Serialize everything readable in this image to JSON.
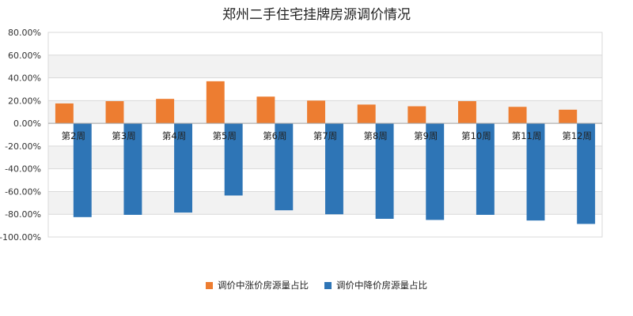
{
  "chart_data": {
    "type": "bar",
    "title": "郑州二手住宅挂牌房源调价情况",
    "categories": [
      "第2周",
      "第3周",
      "第4周",
      "第5周",
      "第6周",
      "第7周",
      "第8周",
      "第9周",
      "第10周",
      "第11周",
      "第12周"
    ],
    "series": [
      {
        "name": "调价中涨价房源量占比",
        "color": "#ED7D31",
        "values": [
          17.5,
          19.5,
          21.5,
          37.0,
          23.5,
          20.0,
          16.5,
          15.0,
          19.5,
          14.5,
          12.0
        ]
      },
      {
        "name": "调价中降价房源量占比",
        "color": "#2E75B6",
        "values": [
          -82.5,
          -80.5,
          -78.5,
          -63.5,
          -76.5,
          -80.0,
          -84.0,
          -85.0,
          -80.5,
          -85.5,
          -88.5
        ]
      }
    ],
    "ylim": [
      -100,
      80
    ],
    "yticks": [
      "80.00%",
      "60.00%",
      "40.00%",
      "20.00%",
      "0.00%",
      "-20.00%",
      "-40.00%",
      "-60.00%",
      "-80.00%",
      "-100.00%"
    ],
    "legend_position": "bottom",
    "grid": true
  }
}
